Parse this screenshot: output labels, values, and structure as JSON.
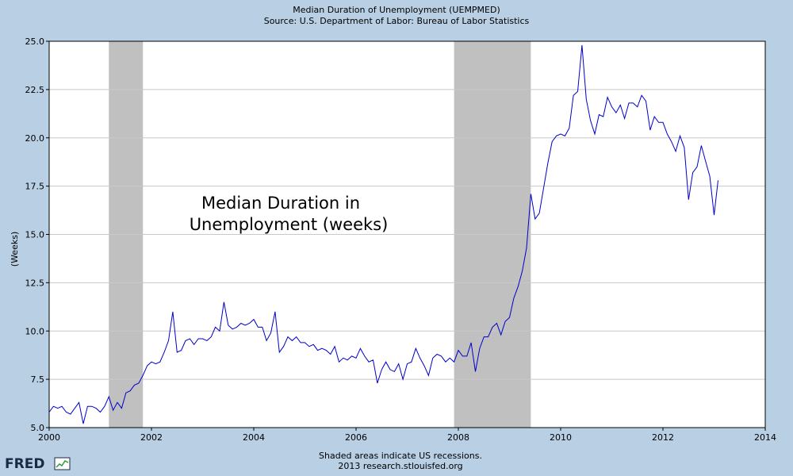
{
  "chart_data": {
    "type": "line",
    "title": "Median Duration of Unemployment (UEMPMED)",
    "subtitle": "Source: U.S. Department of Labor: Bureau of Labor Statistics",
    "ylabel": "(Weeks)",
    "xlabel": "",
    "xlim": [
      2000,
      2014
    ],
    "ylim": [
      5.0,
      25.0
    ],
    "xticks": [
      "2000",
      "2002",
      "2004",
      "2006",
      "2008",
      "2010",
      "2012",
      "2014"
    ],
    "yticks": [
      "5.0",
      "7.5",
      "10.0",
      "12.5",
      "15.0",
      "17.5",
      "20.0",
      "22.5",
      "25.0"
    ],
    "grid": true,
    "annotation": [
      "Median Duration in",
      "Unemployment (weeks)"
    ],
    "recessions": [
      {
        "start": "2001-03",
        "end": "2001-11"
      },
      {
        "start": "2007-12",
        "end": "2009-06"
      }
    ],
    "series": [
      {
        "color": "#0000cc",
        "x": [
          "2000-01",
          "2000-02",
          "2000-03",
          "2000-04",
          "2000-05",
          "2000-06",
          "2000-07",
          "2000-08",
          "2000-09",
          "2000-10",
          "2000-11",
          "2000-12",
          "2001-01",
          "2001-02",
          "2001-03",
          "2001-04",
          "2001-05",
          "2001-06",
          "2001-07",
          "2001-08",
          "2001-09",
          "2001-10",
          "2001-11",
          "2001-12",
          "2002-01",
          "2002-02",
          "2002-03",
          "2002-04",
          "2002-05",
          "2002-06",
          "2002-07",
          "2002-08",
          "2002-09",
          "2002-10",
          "2002-11",
          "2002-12",
          "2003-01",
          "2003-02",
          "2003-03",
          "2003-04",
          "2003-05",
          "2003-06",
          "2003-07",
          "2003-08",
          "2003-09",
          "2003-10",
          "2003-11",
          "2003-12",
          "2004-01",
          "2004-02",
          "2004-03",
          "2004-04",
          "2004-05",
          "2004-06",
          "2004-07",
          "2004-08",
          "2004-09",
          "2004-10",
          "2004-11",
          "2004-12",
          "2005-01",
          "2005-02",
          "2005-03",
          "2005-04",
          "2005-05",
          "2005-06",
          "2005-07",
          "2005-08",
          "2005-09",
          "2005-10",
          "2005-11",
          "2005-12",
          "2006-01",
          "2006-02",
          "2006-03",
          "2006-04",
          "2006-05",
          "2006-06",
          "2006-07",
          "2006-08",
          "2006-09",
          "2006-10",
          "2006-11",
          "2006-12",
          "2007-01",
          "2007-02",
          "2007-03",
          "2007-04",
          "2007-05",
          "2007-06",
          "2007-07",
          "2007-08",
          "2007-09",
          "2007-10",
          "2007-11",
          "2007-12",
          "2008-01",
          "2008-02",
          "2008-03",
          "2008-04",
          "2008-05",
          "2008-06",
          "2008-07",
          "2008-08",
          "2008-09",
          "2008-10",
          "2008-11",
          "2008-12",
          "2009-01",
          "2009-02",
          "2009-03",
          "2009-04",
          "2009-05",
          "2009-06",
          "2009-07",
          "2009-08",
          "2009-09",
          "2009-10",
          "2009-11",
          "2009-12",
          "2010-01",
          "2010-02",
          "2010-03",
          "2010-04",
          "2010-05",
          "2010-06",
          "2010-07",
          "2010-08",
          "2010-09",
          "2010-10",
          "2010-11",
          "2010-12",
          "2011-01",
          "2011-02",
          "2011-03",
          "2011-04",
          "2011-05",
          "2011-06",
          "2011-07",
          "2011-08",
          "2011-09",
          "2011-10",
          "2011-11",
          "2011-12",
          "2012-01",
          "2012-02",
          "2012-03",
          "2012-04",
          "2012-05",
          "2012-06",
          "2012-07",
          "2012-08",
          "2012-09",
          "2012-10",
          "2012-11",
          "2012-12",
          "2013-01"
        ],
        "y": [
          5.8,
          6.1,
          6.0,
          6.1,
          5.8,
          5.7,
          6.0,
          6.3,
          5.2,
          6.1,
          6.1,
          6.0,
          5.8,
          6.1,
          6.6,
          5.9,
          6.3,
          6.0,
          6.8,
          6.9,
          7.2,
          7.3,
          7.7,
          8.2,
          8.4,
          8.3,
          8.4,
          8.9,
          9.5,
          11.0,
          8.9,
          9.0,
          9.5,
          9.6,
          9.3,
          9.6,
          9.6,
          9.5,
          9.7,
          10.2,
          10.0,
          11.5,
          10.3,
          10.1,
          10.2,
          10.4,
          10.3,
          10.4,
          10.6,
          10.2,
          10.2,
          9.5,
          9.9,
          11.0,
          8.9,
          9.2,
          9.7,
          9.5,
          9.7,
          9.4,
          9.4,
          9.2,
          9.3,
          9.0,
          9.1,
          9.0,
          8.8,
          9.2,
          8.4,
          8.6,
          8.5,
          8.7,
          8.6,
          9.1,
          8.7,
          8.4,
          8.5,
          7.3,
          8.0,
          8.4,
          8.0,
          7.9,
          8.3,
          7.5,
          8.3,
          8.4,
          9.1,
          8.6,
          8.2,
          7.7,
          8.6,
          8.8,
          8.7,
          8.4,
          8.6,
          8.4,
          9.0,
          8.7,
          8.7,
          9.4,
          7.9,
          9.1,
          9.7,
          9.7,
          10.2,
          10.4,
          9.8,
          10.5,
          10.7,
          11.7,
          12.3,
          13.1,
          14.3,
          17.1,
          15.8,
          16.1,
          17.4,
          18.7,
          19.8,
          20.1,
          20.2,
          20.1,
          20.5,
          22.2,
          22.4,
          24.8,
          22.0,
          20.9,
          20.2,
          21.2,
          21.1,
          22.1,
          21.6,
          21.3,
          21.7,
          21.0,
          21.8,
          21.8,
          21.6,
          22.2,
          21.9,
          20.4,
          21.1,
          20.8,
          20.8,
          20.2,
          19.8,
          19.3,
          20.1,
          19.5,
          16.8,
          18.2,
          18.5,
          19.6,
          18.8,
          18.0,
          16.0
        ],
        "y_extra_last": 17.8
      }
    ],
    "footer": [
      "Shaded areas indicate US recessions.",
      "2013 research.stlouisfed.org"
    ],
    "logo_text": "FRED"
  }
}
